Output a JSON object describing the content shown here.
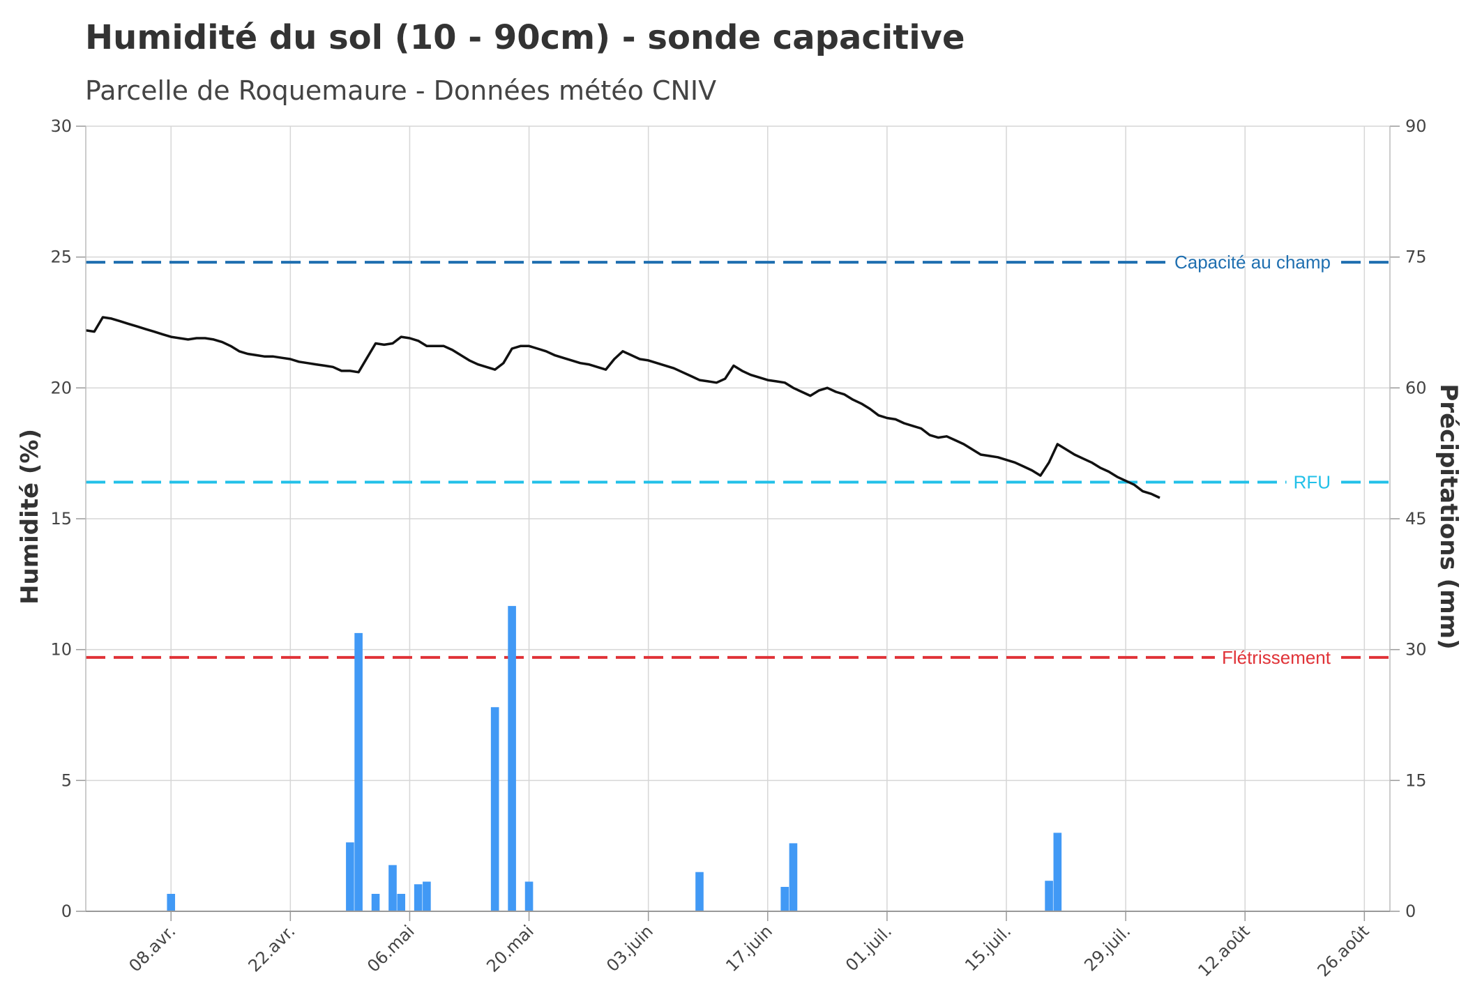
{
  "chart_data": {
    "type": "line",
    "title": "Humidité du sol (10 - 90cm) - sonde capacitive",
    "subtitle": "Parcelle de Roquemaure - Données météo CNIV",
    "x_ticks": [
      "08.avr.",
      "22.avr.",
      "06.mai",
      "20.mai",
      "03.juin",
      "17.juin",
      "01.juil.",
      "15.juil.",
      "29.juil.",
      "12.août",
      "26.août"
    ],
    "x_range": [
      "2023-03-29",
      "2023-08-29"
    ],
    "y_left": {
      "label": "Humidité (%)",
      "lim": [
        0,
        30
      ],
      "ticks": [
        0,
        5,
        10,
        15,
        20,
        25,
        30
      ]
    },
    "y_right": {
      "label": "Précipitations (mm)",
      "lim": [
        0,
        90
      ],
      "ticks": [
        0,
        15,
        30,
        45,
        60,
        75,
        90
      ]
    },
    "grid": true,
    "reference_lines": [
      {
        "label": "Capacité au champ",
        "value": 24.8,
        "color": "#1f6fb0"
      },
      {
        "label": "RFU",
        "value": 16.4,
        "color": "#22c0e8"
      },
      {
        "label": "Flétrissement",
        "value": 9.7,
        "color": "#e03237"
      }
    ],
    "series": [
      {
        "type": "line",
        "axis": "left",
        "color": "#111111",
        "points": [
          [
            "2023-03-29",
            22.2
          ],
          [
            "2023-03-30",
            22.15
          ],
          [
            "2023-03-31",
            22.7
          ],
          [
            "2023-04-01",
            22.65
          ],
          [
            "2023-04-02",
            22.55
          ],
          [
            "2023-04-03",
            22.45
          ],
          [
            "2023-04-04",
            22.35
          ],
          [
            "2023-04-05",
            22.25
          ],
          [
            "2023-04-06",
            22.15
          ],
          [
            "2023-04-07",
            22.05
          ],
          [
            "2023-04-08",
            21.95
          ],
          [
            "2023-04-09",
            21.9
          ],
          [
            "2023-04-10",
            21.85
          ],
          [
            "2023-04-11",
            21.9
          ],
          [
            "2023-04-12",
            21.9
          ],
          [
            "2023-04-13",
            21.85
          ],
          [
            "2023-04-14",
            21.75
          ],
          [
            "2023-04-15",
            21.6
          ],
          [
            "2023-04-16",
            21.4
          ],
          [
            "2023-04-17",
            21.3
          ],
          [
            "2023-04-18",
            21.25
          ],
          [
            "2023-04-19",
            21.2
          ],
          [
            "2023-04-20",
            21.2
          ],
          [
            "2023-04-21",
            21.15
          ],
          [
            "2023-04-22",
            21.1
          ],
          [
            "2023-04-23",
            21.0
          ],
          [
            "2023-04-24",
            20.95
          ],
          [
            "2023-04-25",
            20.9
          ],
          [
            "2023-04-26",
            20.85
          ],
          [
            "2023-04-27",
            20.8
          ],
          [
            "2023-04-28",
            20.65
          ],
          [
            "2023-04-29",
            20.65
          ],
          [
            "2023-04-30",
            20.6
          ],
          [
            "2023-05-01",
            21.15
          ],
          [
            "2023-05-02",
            21.7
          ],
          [
            "2023-05-03",
            21.65
          ],
          [
            "2023-05-04",
            21.7
          ],
          [
            "2023-05-05",
            21.95
          ],
          [
            "2023-05-06",
            21.9
          ],
          [
            "2023-05-07",
            21.8
          ],
          [
            "2023-05-08",
            21.6
          ],
          [
            "2023-05-09",
            21.6
          ],
          [
            "2023-05-10",
            21.6
          ],
          [
            "2023-05-11",
            21.45
          ],
          [
            "2023-05-12",
            21.25
          ],
          [
            "2023-05-13",
            21.05
          ],
          [
            "2023-05-14",
            20.9
          ],
          [
            "2023-05-15",
            20.8
          ],
          [
            "2023-05-16",
            20.7
          ],
          [
            "2023-05-17",
            20.95
          ],
          [
            "2023-05-18",
            21.5
          ],
          [
            "2023-05-19",
            21.6
          ],
          [
            "2023-05-20",
            21.6
          ],
          [
            "2023-05-21",
            21.5
          ],
          [
            "2023-05-22",
            21.4
          ],
          [
            "2023-05-23",
            21.25
          ],
          [
            "2023-05-24",
            21.15
          ],
          [
            "2023-05-25",
            21.05
          ],
          [
            "2023-05-26",
            20.95
          ],
          [
            "2023-05-27",
            20.9
          ],
          [
            "2023-05-28",
            20.8
          ],
          [
            "2023-05-29",
            20.7
          ],
          [
            "2023-05-30",
            21.1
          ],
          [
            "2023-05-31",
            21.4
          ],
          [
            "2023-06-01",
            21.25
          ],
          [
            "2023-06-02",
            21.1
          ],
          [
            "2023-06-03",
            21.05
          ],
          [
            "2023-06-04",
            20.95
          ],
          [
            "2023-06-05",
            20.85
          ],
          [
            "2023-06-06",
            20.75
          ],
          [
            "2023-06-07",
            20.6
          ],
          [
            "2023-06-08",
            20.45
          ],
          [
            "2023-06-09",
            20.3
          ],
          [
            "2023-06-10",
            20.25
          ],
          [
            "2023-06-11",
            20.2
          ],
          [
            "2023-06-12",
            20.35
          ],
          [
            "2023-06-13",
            20.85
          ],
          [
            "2023-06-14",
            20.65
          ],
          [
            "2023-06-15",
            20.5
          ],
          [
            "2023-06-16",
            20.4
          ],
          [
            "2023-06-17",
            20.3
          ],
          [
            "2023-06-18",
            20.25
          ],
          [
            "2023-06-19",
            20.2
          ],
          [
            "2023-06-20",
            20.0
          ],
          [
            "2023-06-21",
            19.85
          ],
          [
            "2023-06-22",
            19.7
          ],
          [
            "2023-06-23",
            19.9
          ],
          [
            "2023-06-24",
            20.0
          ],
          [
            "2023-06-25",
            19.85
          ],
          [
            "2023-06-26",
            19.75
          ],
          [
            "2023-06-27",
            19.55
          ],
          [
            "2023-06-28",
            19.4
          ],
          [
            "2023-06-29",
            19.2
          ],
          [
            "2023-06-30",
            18.95
          ],
          [
            "2023-07-01",
            18.85
          ],
          [
            "2023-07-02",
            18.8
          ],
          [
            "2023-07-03",
            18.65
          ],
          [
            "2023-07-04",
            18.55
          ],
          [
            "2023-07-05",
            18.45
          ],
          [
            "2023-07-06",
            18.2
          ],
          [
            "2023-07-07",
            18.1
          ],
          [
            "2023-07-08",
            18.15
          ],
          [
            "2023-07-09",
            18.0
          ],
          [
            "2023-07-10",
            17.85
          ],
          [
            "2023-07-11",
            17.65
          ],
          [
            "2023-07-12",
            17.45
          ],
          [
            "2023-07-13",
            17.4
          ],
          [
            "2023-07-14",
            17.35
          ],
          [
            "2023-07-15",
            17.25
          ],
          [
            "2023-07-16",
            17.15
          ],
          [
            "2023-07-17",
            17.0
          ],
          [
            "2023-07-18",
            16.85
          ],
          [
            "2023-07-19",
            16.65
          ],
          [
            "2023-07-20",
            17.15
          ],
          [
            "2023-07-21",
            17.85
          ],
          [
            "2023-07-22",
            17.65
          ],
          [
            "2023-07-23",
            17.45
          ],
          [
            "2023-07-24",
            17.3
          ],
          [
            "2023-07-25",
            17.15
          ],
          [
            "2023-07-26",
            16.95
          ],
          [
            "2023-07-27",
            16.8
          ],
          [
            "2023-07-28",
            16.6
          ],
          [
            "2023-07-29",
            16.45
          ],
          [
            "2023-07-30",
            16.3
          ],
          [
            "2023-07-31",
            16.05
          ],
          [
            "2023-08-01",
            15.95
          ],
          [
            "2023-08-02",
            15.8
          ]
        ]
      },
      {
        "type": "bar",
        "axis": "right",
        "color": "#4199f5",
        "points": [
          [
            "2023-04-08",
            2.0
          ],
          [
            "2023-04-29",
            7.9
          ],
          [
            "2023-04-30",
            31.9
          ],
          [
            "2023-05-02",
            2.0
          ],
          [
            "2023-05-04",
            5.3
          ],
          [
            "2023-05-05",
            2.0
          ],
          [
            "2023-05-07",
            3.1
          ],
          [
            "2023-05-08",
            3.4
          ],
          [
            "2023-05-16",
            23.4
          ],
          [
            "2023-05-18",
            35.0
          ],
          [
            "2023-05-20",
            3.4
          ],
          [
            "2023-06-09",
            4.5
          ],
          [
            "2023-06-19",
            2.8
          ],
          [
            "2023-06-20",
            7.8
          ],
          [
            "2023-07-20",
            3.5
          ],
          [
            "2023-07-21",
            9.0
          ]
        ]
      }
    ]
  }
}
